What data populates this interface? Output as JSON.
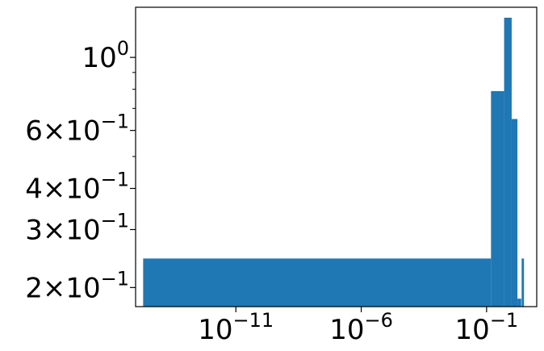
{
  "chart_data": {
    "type": "bar",
    "title": "",
    "xlabel": "",
    "ylabel": "",
    "x_scale": "log",
    "y_scale": "log",
    "grid": false,
    "legend": "none",
    "color": "#1f77b4",
    "xlim": [
      1e-15,
      10
    ],
    "ylim": [
      0.175,
      1.42
    ],
    "x_ticks": [
      {
        "value": 1e-11,
        "base": "10",
        "exp": "−11"
      },
      {
        "value": 1e-06,
        "base": "10",
        "exp": "−6"
      },
      {
        "value": 0.1,
        "base": "10",
        "exp": "−1"
      }
    ],
    "y_ticks": [
      {
        "value": 1.0,
        "mantissa": "10",
        "exp": "0"
      },
      {
        "value": 0.6,
        "mantissa": "6×10",
        "exp": "−1"
      },
      {
        "value": 0.4,
        "mantissa": "4×10",
        "exp": "−1"
      },
      {
        "value": 0.3,
        "mantissa": "3×10",
        "exp": "−1"
      },
      {
        "value": 0.2,
        "mantissa": "2×10",
        "exp": "−1"
      }
    ],
    "y_minor_ticks": [
      0.5,
      0.7,
      0.8,
      0.9
    ],
    "bars": [
      {
        "x0": 2e-15,
        "x1": 0.15,
        "value": 0.245
      },
      {
        "x0": 0.15,
        "x1": 0.5,
        "value": 0.79
      },
      {
        "x0": 0.5,
        "x1": 1.0,
        "value": 1.32
      },
      {
        "x0": 1.0,
        "x1": 1.7,
        "value": 0.65
      },
      {
        "x0": 1.7,
        "x1": 2.4,
        "value": 0.185
      },
      {
        "x0": 2.5,
        "x1": 3.1,
        "value": 0.245
      }
    ]
  }
}
